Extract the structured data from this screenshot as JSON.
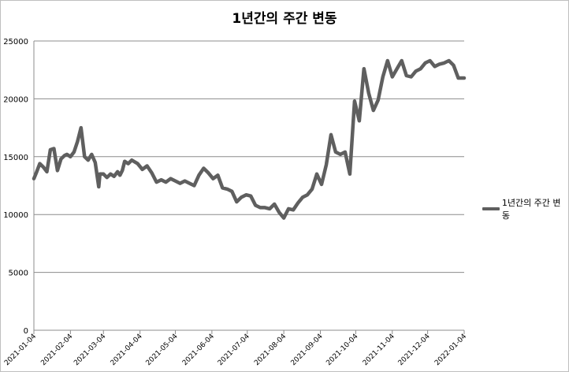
{
  "chart_data": {
    "type": "line",
    "title": "1년간의 주간 변동",
    "xlabel": "",
    "ylabel": "",
    "ylim": [
      0,
      25000
    ],
    "yticks": [
      0,
      5000,
      10000,
      15000,
      20000,
      25000
    ],
    "xticks": [
      "2021-01-04",
      "2021-02-04",
      "2021-03-04",
      "2021-04-04",
      "2021-05-04",
      "2021-06-04",
      "2021-07-04",
      "2021-08-04",
      "2021-09-04",
      "2021-10-04",
      "2021-11-04",
      "2021-12-04",
      "2022-01-04"
    ],
    "grid": true,
    "legend_position": "right",
    "color": "#5f5f5f",
    "series": [
      {
        "name": "1년간의 주간 변동",
        "x": [
          "2021-01-04",
          "2021-01-06",
          "2021-01-09",
          "2021-01-12",
          "2021-01-15",
          "2021-01-18",
          "2021-01-21",
          "2021-01-24",
          "2021-01-27",
          "2021-01-30",
          "2021-02-01",
          "2021-02-04",
          "2021-02-07",
          "2021-02-10",
          "2021-02-13",
          "2021-02-16",
          "2021-02-19",
          "2021-02-22",
          "2021-02-25",
          "2021-02-28",
          "2021-03-01",
          "2021-03-04",
          "2021-03-07",
          "2021-03-10",
          "2021-03-13",
          "2021-03-16",
          "2021-03-18",
          "2021-03-20",
          "2021-03-22",
          "2021-03-25",
          "2021-03-28",
          "2021-04-02",
          "2021-04-06",
          "2021-04-10",
          "2021-04-14",
          "2021-04-18",
          "2021-04-22",
          "2021-04-26",
          "2021-04-30",
          "2021-05-04",
          "2021-05-08",
          "2021-05-12",
          "2021-05-16",
          "2021-05-20",
          "2021-05-24",
          "2021-05-28",
          "2021-06-01",
          "2021-06-05",
          "2021-06-09",
          "2021-06-13",
          "2021-06-17",
          "2021-06-21",
          "2021-06-25",
          "2021-06-29",
          "2021-07-03",
          "2021-07-07",
          "2021-07-11",
          "2021-07-15",
          "2021-07-19",
          "2021-07-23",
          "2021-07-27",
          "2021-07-31",
          "2021-08-04",
          "2021-08-08",
          "2021-08-12",
          "2021-08-16",
          "2021-08-20",
          "2021-08-24",
          "2021-08-28",
          "2021-09-01",
          "2021-09-05",
          "2021-09-09",
          "2021-09-13",
          "2021-09-17",
          "2021-09-21",
          "2021-09-25",
          "2021-09-29",
          "2021-10-03",
          "2021-10-07",
          "2021-10-11",
          "2021-10-15",
          "2021-10-19",
          "2021-10-23",
          "2021-10-27",
          "2021-10-31",
          "2021-11-04",
          "2021-11-08",
          "2021-11-12",
          "2021-11-16",
          "2021-11-20",
          "2021-11-24",
          "2021-11-28",
          "2021-12-02",
          "2021-12-06",
          "2021-12-10",
          "2021-12-14",
          "2021-12-18",
          "2021-12-22",
          "2021-12-26",
          "2021-12-30",
          "2022-01-04"
        ],
        "values": [
          13100,
          13600,
          14400,
          14100,
          13700,
          15600,
          15700,
          13800,
          14800,
          15100,
          15200,
          15000,
          15400,
          16300,
          17500,
          15000,
          14700,
          15200,
          14500,
          12400,
          13500,
          13500,
          13200,
          13500,
          13300,
          13700,
          13400,
          13800,
          14600,
          14400,
          14700,
          14400,
          13900,
          14200,
          13600,
          12800,
          13000,
          12800,
          13100,
          12900,
          12700,
          12900,
          12700,
          12500,
          13400,
          14000,
          13600,
          13100,
          13400,
          12300,
          12200,
          12000,
          11100,
          11500,
          11700,
          11600,
          10800,
          10600,
          10600,
          10500,
          10900,
          10200,
          9700,
          10500,
          10400,
          11000,
          11500,
          11700,
          12200,
          13500,
          12600,
          14300,
          16900,
          15400,
          15200,
          15400,
          13500,
          19800,
          18100,
          22600,
          20500,
          19000,
          19900,
          21900,
          23300,
          21900,
          22600,
          23300,
          22000,
          21900,
          22400,
          22600,
          23100,
          23300,
          22800,
          23000,
          23100,
          23300,
          22900,
          21800,
          21800
        ],
        "values_note": ""
      }
    ]
  }
}
